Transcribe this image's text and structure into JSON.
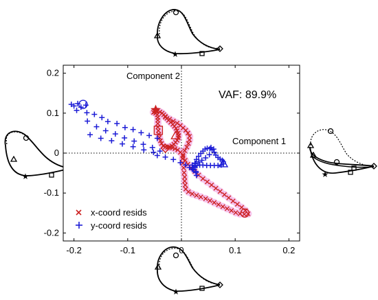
{
  "chart_data": {
    "type": "scatter",
    "title": "",
    "xlabel": "",
    "ylabel": "",
    "xlim": [
      -0.22,
      0.22
    ],
    "ylim": [
      -0.22,
      0.22
    ],
    "xticks": [
      "-0.2",
      "-0.1",
      "0",
      "0.1",
      "0.2"
    ],
    "yticks": [
      "0.2",
      "0.1",
      "0",
      "-0.1",
      "-0.2"
    ],
    "grid": false,
    "legend_position": "bottom-left",
    "annotations": {
      "component_2": "Component 2",
      "component_1": "Component 1",
      "vaf": "VAF: 89.9%"
    },
    "series": [
      {
        "name": "x-coord resids",
        "marker": "x",
        "color": "#cc2222",
        "halo_color": "#f4b8e8",
        "points": [
          [
            -0.045,
            0.105
          ],
          [
            -0.04,
            0.103
          ],
          [
            -0.036,
            0.1
          ],
          [
            -0.033,
            0.096
          ],
          [
            -0.03,
            0.092
          ],
          [
            -0.027,
            0.087
          ],
          [
            -0.024,
            0.082
          ],
          [
            -0.02,
            0.077
          ],
          [
            -0.016,
            0.072
          ],
          [
            -0.013,
            0.067
          ],
          [
            -0.01,
            0.062
          ],
          [
            -0.008,
            0.056
          ],
          [
            -0.006,
            0.05
          ],
          [
            -0.005,
            0.044
          ],
          [
            -0.006,
            0.038
          ],
          [
            -0.008,
            0.032
          ],
          [
            -0.011,
            0.027
          ],
          [
            -0.014,
            0.022
          ],
          [
            -0.018,
            0.018
          ],
          [
            -0.022,
            0.016
          ],
          [
            -0.026,
            0.014
          ],
          [
            -0.03,
            0.015
          ],
          [
            -0.034,
            0.018
          ],
          [
            -0.037,
            0.024
          ],
          [
            -0.039,
            0.031
          ],
          [
            -0.041,
            0.039
          ],
          [
            -0.042,
            0.047
          ],
          [
            -0.043,
            0.056
          ],
          [
            -0.044,
            0.065
          ],
          [
            -0.044,
            0.074
          ],
          [
            -0.044,
            0.082
          ],
          [
            -0.044,
            0.089
          ],
          [
            -0.045,
            0.096
          ],
          [
            -0.048,
            0.1
          ],
          [
            -0.052,
            0.102
          ],
          [
            -0.03,
            0.09
          ],
          [
            -0.022,
            0.085
          ],
          [
            -0.015,
            0.08
          ],
          [
            -0.008,
            0.075
          ],
          [
            -0.002,
            0.069
          ],
          [
            0.003,
            0.063
          ],
          [
            0.008,
            0.057
          ],
          [
            0.012,
            0.05
          ],
          [
            0.015,
            0.042
          ],
          [
            0.015,
            0.033
          ],
          [
            0.013,
            0.024
          ],
          [
            0.01,
            0.015
          ],
          [
            0.006,
            0.006
          ],
          [
            0.003,
            -0.004
          ],
          [
            0.002,
            -0.014
          ],
          [
            0.003,
            -0.025
          ],
          [
            0.004,
            -0.037
          ],
          [
            0.005,
            -0.049
          ],
          [
            0.006,
            -0.06
          ],
          [
            0.006,
            -0.07
          ],
          [
            0.007,
            -0.08
          ],
          [
            0.008,
            -0.09
          ],
          [
            0.013,
            -0.097
          ],
          [
            0.02,
            -0.102
          ],
          [
            0.028,
            -0.106
          ],
          [
            0.036,
            -0.11
          ],
          [
            0.045,
            -0.114
          ],
          [
            0.053,
            -0.119
          ],
          [
            0.061,
            -0.124
          ],
          [
            0.069,
            -0.129
          ],
          [
            0.077,
            -0.134
          ],
          [
            0.085,
            -0.139
          ],
          [
            0.093,
            -0.144
          ],
          [
            0.101,
            -0.149
          ],
          [
            0.109,
            -0.152
          ],
          [
            0.117,
            -0.153
          ],
          [
            0.124,
            -0.152
          ],
          [
            0.119,
            -0.144
          ],
          [
            0.112,
            -0.136
          ],
          [
            0.104,
            -0.128
          ],
          [
            0.096,
            -0.12
          ],
          [
            0.088,
            -0.112
          ],
          [
            0.08,
            -0.104
          ],
          [
            0.072,
            -0.096
          ],
          [
            0.064,
            -0.088
          ],
          [
            0.056,
            -0.08
          ],
          [
            0.048,
            -0.072
          ],
          [
            0.04,
            -0.064
          ],
          [
            0.032,
            -0.055
          ],
          [
            0.025,
            -0.046
          ],
          [
            0.018,
            -0.037
          ],
          [
            0.012,
            -0.028
          ],
          [
            0.007,
            -0.018
          ],
          [
            0.003,
            -0.008
          ],
          [
            -0.002,
            0.002
          ],
          [
            -0.007,
            0.008
          ],
          [
            -0.012,
            0.011
          ],
          [
            -0.017,
            0.013
          ],
          [
            -0.022,
            0.014
          ]
        ],
        "special": {
          "circle": [
            0.118,
            -0.15
          ],
          "square": [
            -0.043,
            0.057
          ],
          "triangle": [
            -0.011,
            0.044
          ],
          "diamond": [
            -0.03,
            0.012
          ],
          "star": [
            -0.048,
            0.108
          ]
        }
      },
      {
        "name": "y-coord resids",
        "marker": "+",
        "color": "#1c1cd6",
        "points": [
          [
            -0.205,
            0.122
          ],
          [
            -0.2,
            0.118
          ],
          [
            -0.193,
            0.124
          ],
          [
            -0.187,
            0.115
          ],
          [
            -0.178,
            0.12
          ],
          [
            -0.195,
            0.107
          ],
          [
            -0.176,
            0.101
          ],
          [
            -0.162,
            0.097
          ],
          [
            -0.148,
            0.089
          ],
          [
            -0.137,
            0.079
          ],
          [
            -0.12,
            0.074
          ],
          [
            -0.105,
            0.064
          ],
          [
            -0.09,
            0.059
          ],
          [
            -0.075,
            0.051
          ],
          [
            -0.06,
            0.044
          ],
          [
            -0.045,
            0.037
          ],
          [
            -0.175,
            0.08
          ],
          [
            -0.158,
            0.066
          ],
          [
            -0.141,
            0.056
          ],
          [
            -0.123,
            0.048
          ],
          [
            -0.106,
            0.038
          ],
          [
            -0.088,
            0.03
          ],
          [
            -0.071,
            0.022
          ],
          [
            -0.054,
            0.014
          ],
          [
            -0.04,
            0.005
          ],
          [
            -0.17,
            0.046
          ],
          [
            -0.15,
            0.037
          ],
          [
            -0.13,
            0.031
          ],
          [
            -0.11,
            0.023
          ],
          [
            -0.09,
            0.016
          ],
          [
            -0.07,
            0.008
          ],
          [
            -0.052,
            0.002
          ],
          [
            -0.045,
            -0.006
          ],
          [
            -0.03,
            -0.01
          ],
          [
            -0.015,
            -0.016
          ],
          [
            -0.002,
            -0.024
          ],
          [
            0.008,
            -0.03
          ],
          [
            0.015,
            -0.036
          ],
          [
            0.022,
            -0.042
          ],
          [
            0.027,
            -0.049
          ],
          [
            0.028,
            -0.056
          ],
          [
            0.027,
            -0.046
          ],
          [
            0.025,
            -0.036
          ],
          [
            0.025,
            -0.025
          ],
          [
            0.028,
            -0.016
          ],
          [
            0.032,
            -0.008
          ],
          [
            0.036,
            -0.001
          ],
          [
            0.04,
            0.005
          ],
          [
            0.044,
            0.01
          ],
          [
            0.048,
            0.012
          ],
          [
            0.053,
            0.011
          ],
          [
            0.057,
            0.008
          ],
          [
            0.061,
            0.002
          ],
          [
            0.064,
            -0.005
          ],
          [
            0.068,
            -0.011
          ],
          [
            0.072,
            -0.015
          ],
          [
            0.076,
            -0.018
          ],
          [
            0.078,
            -0.022
          ],
          [
            0.078,
            -0.027
          ],
          [
            0.074,
            -0.03
          ],
          [
            0.068,
            -0.031
          ],
          [
            0.061,
            -0.031
          ],
          [
            0.054,
            -0.031
          ],
          [
            0.047,
            -0.031
          ],
          [
            0.04,
            -0.03
          ],
          [
            0.034,
            -0.03
          ],
          [
            0.029,
            -0.031
          ],
          [
            0.025,
            -0.033
          ],
          [
            0.022,
            -0.036
          ],
          [
            0.02,
            -0.04
          ],
          [
            0.055,
            0.014
          ],
          [
            0.06,
            0.01
          ],
          [
            0.052,
            -0.004
          ],
          [
            0.045,
            -0.012
          ],
          [
            0.038,
            -0.018
          ],
          [
            0.032,
            -0.022
          ],
          [
            0.026,
            -0.026
          ],
          [
            0.02,
            -0.03
          ]
        ],
        "special": {
          "circle": [
            -0.183,
            0.122
          ],
          "triangle": [
            0.078,
            -0.026
          ]
        }
      }
    ]
  }
}
